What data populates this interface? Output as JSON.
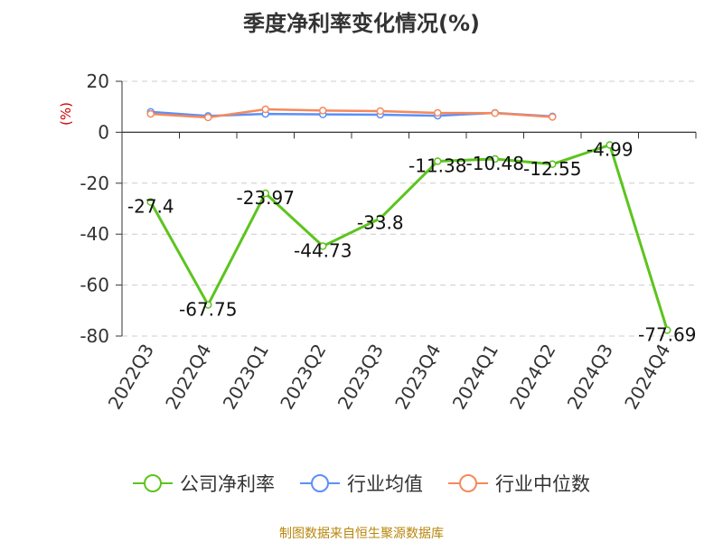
{
  "chart_data": {
    "type": "line",
    "title": "季度净利率变化情况(%)",
    "ylabel": "(%)",
    "categories": [
      "2022Q3",
      "2022Q4",
      "2023Q1",
      "2023Q2",
      "2023Q3",
      "2023Q4",
      "2024Q1",
      "2024Q2",
      "2024Q3",
      "2024Q4"
    ],
    "ylim": [
      -80,
      20
    ],
    "yticks": [
      20,
      0,
      -20,
      -40,
      -60,
      -80
    ],
    "grid": true,
    "legend_position": "bottom",
    "series": [
      {
        "name": "公司净利率",
        "color": "#5cc41e",
        "values": [
          -27.4,
          -67.75,
          -23.97,
          -44.73,
          -33.8,
          -11.38,
          -10.48,
          -12.55,
          -4.99,
          -77.69
        ],
        "labels": [
          "-27.4",
          "-67.75",
          "-23.97",
          "-44.73",
          "-33.8",
          "-11.38",
          "-10.48",
          "-12.55",
          "-4.99",
          "-77.69"
        ]
      },
      {
        "name": "行业均值",
        "color": "#5b8ff9",
        "values": [
          8.0,
          6.4,
          7.2,
          7.0,
          6.9,
          6.5,
          7.6,
          6.2,
          null,
          null
        ]
      },
      {
        "name": "行业中位数",
        "color": "#f5895b",
        "values": [
          7.2,
          5.8,
          9.0,
          8.5,
          8.3,
          7.6,
          7.5,
          6.0,
          null,
          null
        ]
      }
    ],
    "source": "制图数据来自恒生聚源数据库"
  }
}
